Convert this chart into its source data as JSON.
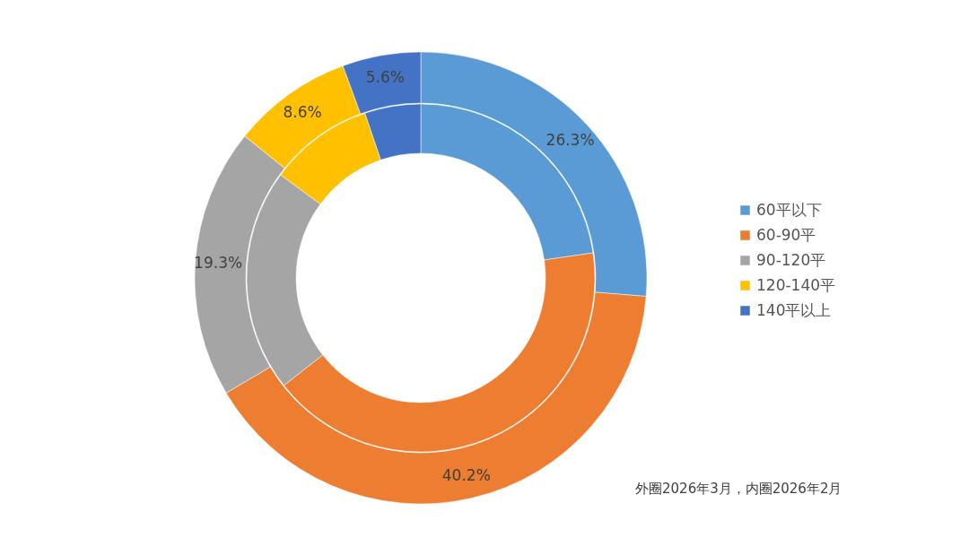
{
  "chart_data": {
    "type": "donut",
    "categories": [
      "60平以下",
      "60-90平",
      "90-120平",
      "120-140平",
      "140平以上"
    ],
    "colors": [
      "#5b9bd5",
      "#ed7d31",
      "#a5a5a5",
      "#ffc000",
      "#4472c4"
    ],
    "series": [
      {
        "values": [
          26.3,
          40.2,
          19.3,
          8.6,
          5.6
        ],
        "value_labels": [
          "26.3%",
          "40.2%",
          "19.3%",
          "8.6%",
          "5.6%"
        ]
      },
      {
        "values": [
          22.7,
          41.7,
          20.7,
          9.7,
          5.2
        ]
      }
    ],
    "legend": "right",
    "annotations": [
      "外圈2026年3月，内圈2026年2月"
    ]
  }
}
